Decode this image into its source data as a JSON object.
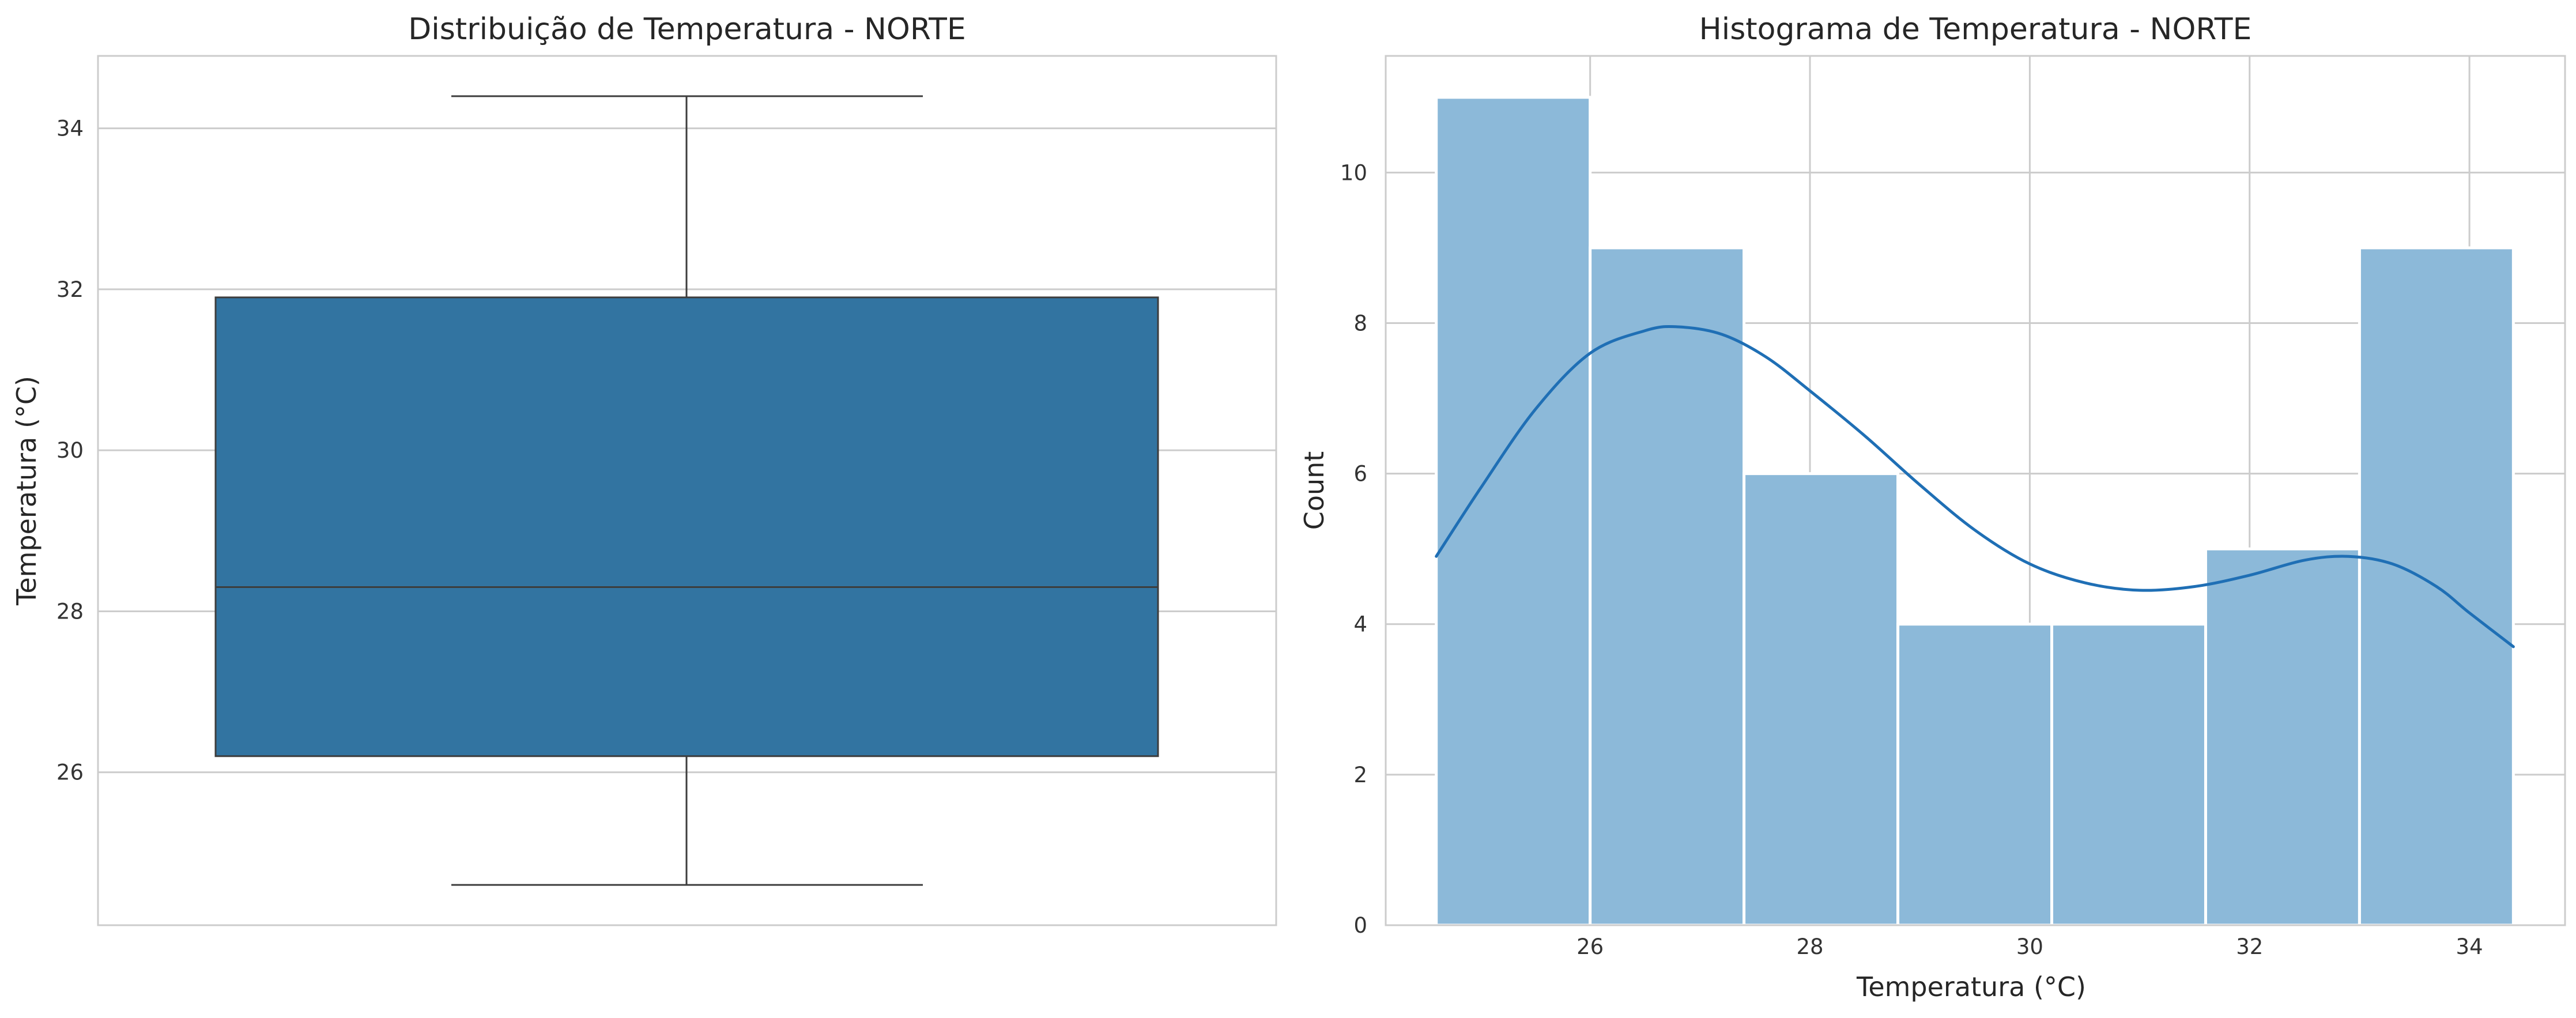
{
  "chart_data": [
    {
      "type": "box",
      "title": "Distribuição de Temperatura - NORTE",
      "xlabel": "",
      "ylabel": "Temperatura (°C)",
      "ylim": [
        24.1,
        34.9
      ],
      "yticks": [
        26,
        28,
        30,
        32,
        34
      ],
      "yticklabels": [
        "26",
        "28",
        "30",
        "32",
        "34"
      ],
      "grid": true,
      "box": {
        "whisker_low": 24.6,
        "q1": 26.2,
        "median": 28.3,
        "q3": 31.9,
        "whisker_high": 34.4
      },
      "colors": {
        "box": "#3274a1",
        "line": "#3d3d3d"
      }
    },
    {
      "type": "histogram",
      "title": "Histograma de Temperatura - NORTE",
      "xlabel": "Temperatura (°C)",
      "ylabel": "Count",
      "xlim": [
        24.14,
        34.87
      ],
      "ylim": [
        0,
        11.55
      ],
      "xticks": [
        26,
        28,
        30,
        32,
        34
      ],
      "xticklabels": [
        "26",
        "28",
        "30",
        "32",
        "34"
      ],
      "yticks": [
        0,
        2,
        4,
        6,
        8,
        10
      ],
      "yticklabels": [
        "0",
        "2",
        "4",
        "6",
        "8",
        "10"
      ],
      "grid": true,
      "bins": [
        {
          "start": 24.6,
          "end": 26.0,
          "count": 11
        },
        {
          "start": 26.0,
          "end": 27.4,
          "count": 9
        },
        {
          "start": 27.4,
          "end": 28.8,
          "count": 6
        },
        {
          "start": 28.8,
          "end": 30.2,
          "count": 4
        },
        {
          "start": 30.2,
          "end": 31.6,
          "count": 4
        },
        {
          "start": 31.6,
          "end": 33.0,
          "count": 5
        },
        {
          "start": 33.0,
          "end": 34.4,
          "count": 9
        }
      ],
      "kde": {
        "x": [
          24.6,
          25.0,
          25.5,
          26.0,
          26.5,
          26.8,
          27.2,
          27.6,
          28.0,
          28.5,
          29.0,
          29.5,
          30.0,
          30.5,
          31.0,
          31.5,
          32.0,
          32.5,
          32.9,
          33.3,
          33.7,
          34.0,
          34.4
        ],
        "y": [
          4.9,
          5.8,
          6.85,
          7.6,
          7.9,
          7.95,
          7.85,
          7.55,
          7.1,
          6.5,
          5.85,
          5.25,
          4.8,
          4.55,
          4.45,
          4.5,
          4.65,
          4.85,
          4.9,
          4.8,
          4.5,
          4.15,
          3.7
        ]
      },
      "colors": {
        "bar": "#8cb9d9",
        "bar_edge": "#ffffff",
        "kde": "#1f6fb5"
      }
    }
  ]
}
